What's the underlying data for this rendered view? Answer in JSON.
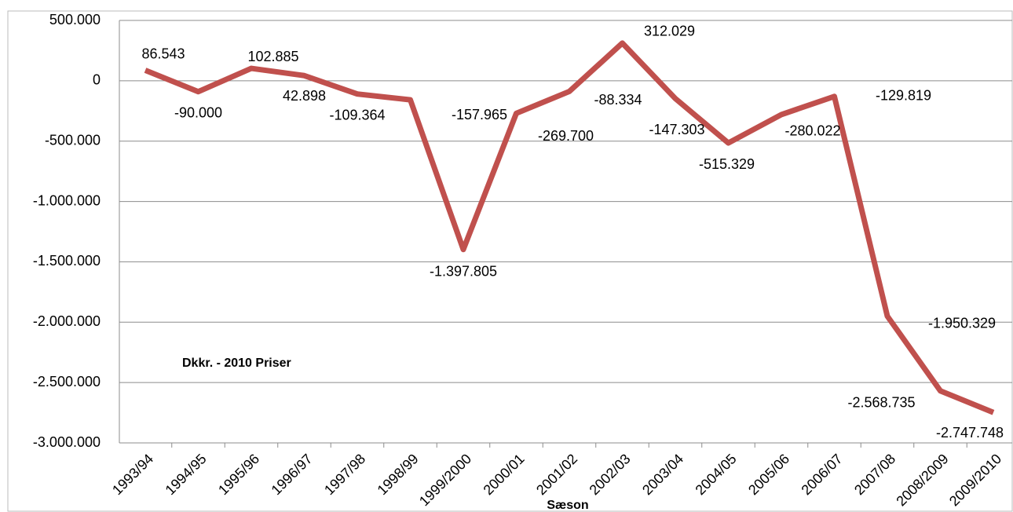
{
  "chart_data": {
    "type": "line",
    "x_label": "Sæson",
    "annotation": "Dkkr. - 2010 Priser",
    "categories": [
      "1993/94",
      "1994/95",
      "1995/96",
      "1996/97",
      "1997/98",
      "1998/99",
      "1999/2000",
      "2000/01",
      "2001/02",
      "2002/03",
      "2003/04",
      "2004/05",
      "2005/06",
      "2006/07",
      "2007/08",
      "2008/2009",
      "2009/2010"
    ],
    "series": [
      {
        "name": "Sæson",
        "color": "#c0504d",
        "values": [
          86543,
          -90000,
          102885,
          42898,
          -109364,
          -157965,
          -1397805,
          -269700,
          -88334,
          312029,
          -147303,
          -515329,
          -280022,
          -129819,
          -1950329,
          -2568735,
          -2747748
        ],
        "value_labels": [
          "86.543",
          "-90.000",
          "102.885",
          "42.898",
          "-109.364",
          "-157.965",
          "-1.397.805",
          "-269.700",
          "-88.334",
          "312.029",
          "-147.303",
          "-515.329",
          "-280.022",
          "-129.819",
          "-1.950.329",
          "-2.568.735",
          "-2.747.748"
        ]
      }
    ],
    "ylim": [
      -3000000,
      500000
    ],
    "yticks": [
      {
        "value": 500000,
        "label": "500.000"
      },
      0,
      {
        "value": -500000,
        "label": "-500.000"
      },
      {
        "value": -1000000,
        "label": "-1.000.000"
      },
      {
        "value": -1500000,
        "label": "-1.500.000"
      },
      {
        "value": -2000000,
        "label": "-2.000.000"
      },
      {
        "value": -2500000,
        "label": "-2.500.000"
      },
      {
        "value": -3000000,
        "label": "-3.000.000"
      }
    ],
    "grid": true
  }
}
